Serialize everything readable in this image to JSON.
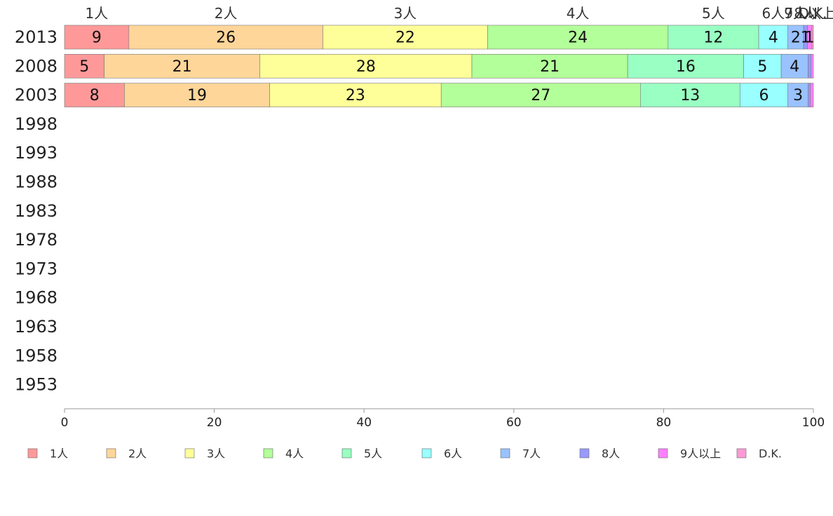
{
  "chart_data": {
    "type": "bar",
    "orientation": "horizontal",
    "stacked": true,
    "categories": [
      "2013",
      "2008",
      "2003",
      "1998",
      "1993",
      "1988",
      "1983",
      "1978",
      "1973",
      "1968",
      "1963",
      "1958",
      "1953"
    ],
    "series": [
      {
        "name": "1人",
        "color": "#ff9999",
        "values": [
          8.6,
          5.3,
          8.0,
          null,
          null,
          null,
          null,
          null,
          null,
          null,
          null,
          null,
          null
        ]
      },
      {
        "name": "2人",
        "color": "#ffd699",
        "values": [
          25.9,
          20.8,
          19.4,
          null,
          null,
          null,
          null,
          null,
          null,
          null,
          null,
          null,
          null
        ]
      },
      {
        "name": "3人",
        "color": "#ffff99",
        "values": [
          22.0,
          28.3,
          22.9,
          null,
          null,
          null,
          null,
          null,
          null,
          null,
          null,
          null,
          null
        ]
      },
      {
        "name": "4人",
        "color": "#b3ff99",
        "values": [
          24.1,
          20.8,
          26.6,
          null,
          null,
          null,
          null,
          null,
          null,
          null,
          null,
          null,
          null
        ]
      },
      {
        "name": "5人",
        "color": "#99ffc2",
        "values": [
          12.1,
          15.5,
          13.3,
          null,
          null,
          null,
          null,
          null,
          null,
          null,
          null,
          null,
          null
        ]
      },
      {
        "name": "6人",
        "color": "#99ffff",
        "values": [
          3.9,
          5.0,
          6.4,
          null,
          null,
          null,
          null,
          null,
          null,
          null,
          null,
          null,
          null
        ]
      },
      {
        "name": "7人",
        "color": "#99c2ff",
        "values": [
          2.1,
          3.6,
          2.7,
          null,
          null,
          null,
          null,
          null,
          null,
          null,
          null,
          null,
          null
        ]
      },
      {
        "name": "8人",
        "color": "#9999ff",
        "values": [
          0.5,
          0.4,
          0.3,
          null,
          null,
          null,
          null,
          null,
          null,
          null,
          null,
          null,
          null
        ]
      },
      {
        "name": "9人以上",
        "color": "#ff80ff",
        "values": [
          0.6,
          0.3,
          0.4,
          null,
          null,
          null,
          null,
          null,
          null,
          null,
          null,
          null,
          null
        ]
      },
      {
        "name": "D.K.",
        "color": "#ff99d6",
        "values": [
          0.2,
          0.0,
          0.0,
          null,
          null,
          null,
          null,
          null,
          null,
          null,
          null,
          null,
          null
        ]
      }
    ],
    "top_labels": [
      "1人",
      "2人",
      "3人",
      "4人",
      "5人",
      "6人",
      "7人",
      "8人",
      "9人以上",
      "D.K."
    ],
    "xlim": [
      0,
      100
    ],
    "xticks": [
      0,
      20,
      40,
      60,
      80,
      100
    ],
    "grid": false,
    "legend": "bottom"
  }
}
